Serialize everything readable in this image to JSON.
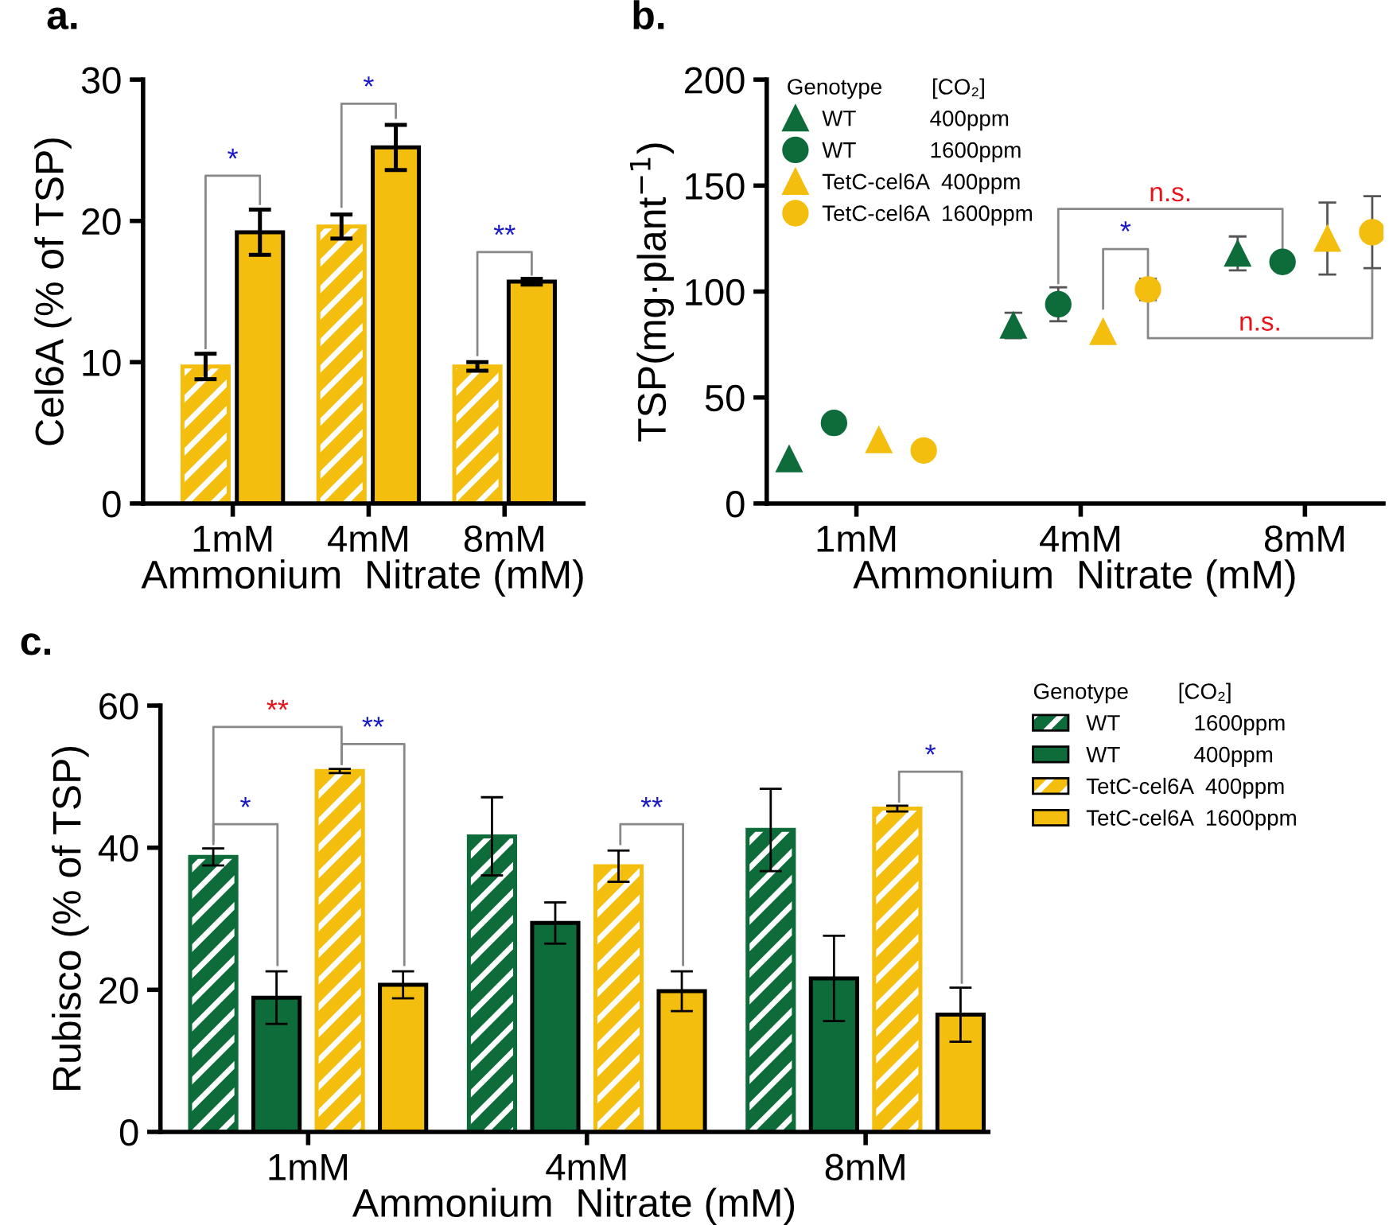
{
  "chart_data": [
    {
      "type": "bar",
      "title": "a.",
      "xlabel": "Ammonium  Nitrate (mM)",
      "ylabel": "Cel6A (% of TSP)",
      "categories": [
        "1mM",
        "4mM",
        "8mM"
      ],
      "ylim": [
        0,
        30
      ],
      "yticks": [
        0,
        10,
        20,
        30
      ],
      "grid": false,
      "legend": false,
      "series": [
        {
          "color": "#f4be0f",
          "values": [
            9.7,
            19.6,
            9.7
          ],
          "errors": [
            0.9,
            0.85,
            0.3
          ]
        },
        {
          "color": "#f4be0f",
          "values": [
            19.2,
            25.2,
            15.7
          ],
          "errors": [
            1.6,
            1.6,
            0.2
          ]
        }
      ],
      "annotations": [
        "*",
        "*",
        "**"
      ]
    },
    {
      "type": "scatter",
      "title": "b.",
      "xlabel": "Ammonium  Nitrate (mM)",
      "ylabel": "TSP(mg·plant$^{−1}$)",
      "categories": [
        "1mM",
        "4mM",
        "8mM"
      ],
      "ylim": [
        0,
        200
      ],
      "yticks": [
        0,
        50,
        100,
        150,
        200
      ],
      "grid": false,
      "legend": "top left",
      "legend_title": "Genotype        [CO₂]",
      "series": [
        {
          "name": "WT            400ppm",
          "color": "#0e6b3a",
          "marker": "triangle",
          "values": [
            21,
            84,
            118
          ],
          "errors": [
            null,
            6,
            8
          ]
        },
        {
          "name": "WT            1600ppm",
          "color": "#0e6b3a",
          "marker": "circle",
          "values": [
            38,
            94,
            114
          ],
          "errors": [
            null,
            8,
            null
          ]
        },
        {
          "name": "TetC-cel6A  400ppm",
          "color": "#f4be0f",
          "marker": "triangle",
          "values": [
            30,
            81,
            125
          ],
          "errors": [
            null,
            null,
            17
          ]
        },
        {
          "name": "TetC-cel6A  1600ppm",
          "color": "#f4be0f",
          "marker": "circle",
          "values": [
            25,
            101,
            128
          ],
          "errors": [
            null,
            5,
            17
          ]
        }
      ],
      "annotations": [
        "n.s.",
        "*",
        "n.s."
      ]
    },
    {
      "type": "bar",
      "title": "c.",
      "xlabel": "Ammonium  Nitrate (mM)",
      "ylabel": "Rubisco (% of TSP)",
      "categories": [
        "1mM",
        "4mM",
        "8mM"
      ],
      "ylim": [
        0,
        60
      ],
      "yticks": [
        0,
        20,
        40,
        60
      ],
      "grid": false,
      "legend": "right",
      "legend_title": "Genotype        [CO₂]",
      "series": [
        {
          "name": "WT            1600ppm",
          "color": "#0e6b3a",
          "values": [
            38.7,
            41.6,
            42.5
          ],
          "errors": [
            1.2,
            5.5,
            5.8
          ]
        },
        {
          "name": "WT            400ppm",
          "color": "#0e6b3a",
          "values": [
            18.9,
            29.4,
            21.6
          ],
          "errors": [
            3.7,
            2.9,
            6
          ]
        },
        {
          "name": "TetC-cel6A  400ppm",
          "color": "#f4be0f",
          "values": [
            50.8,
            37.4,
            45.5
          ],
          "errors": [
            0.3,
            2.2,
            0.4
          ]
        },
        {
          "name": "TetC-cel6A  1600ppm",
          "color": "#f4be0f",
          "values": [
            20.7,
            19.8,
            16.5
          ],
          "errors": [
            1.9,
            2.8,
            3.8
          ]
        }
      ],
      "annotations": [
        "**",
        "**",
        "*",
        "**",
        "*"
      ]
    }
  ]
}
